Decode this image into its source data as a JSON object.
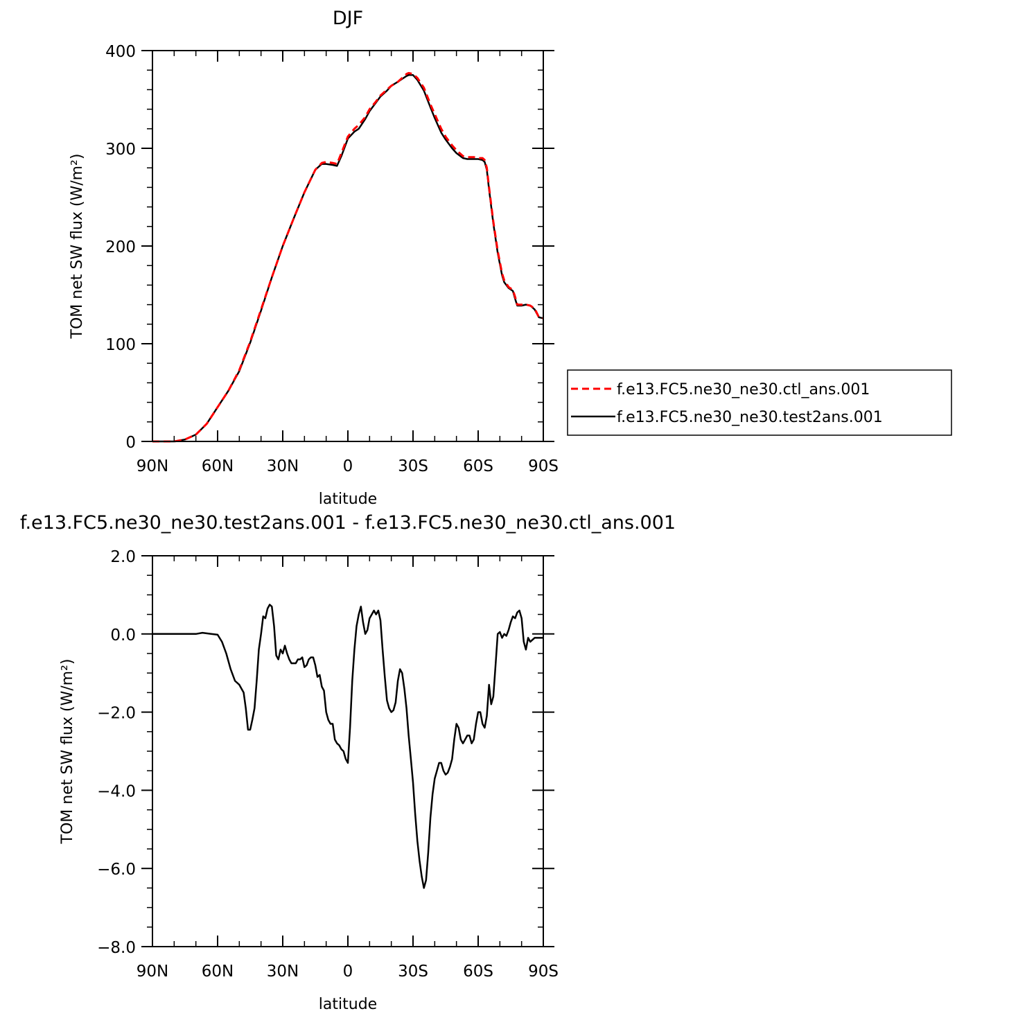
{
  "chart_data": [
    {
      "type": "line",
      "title": "DJF",
      "xlabel": "latitude",
      "ylabel": "TOM net SW flux (W/m²)",
      "xlim": [
        -90,
        90
      ],
      "ylim": [
        0,
        400
      ],
      "x_ticks": [
        -90,
        -60,
        -30,
        0,
        30,
        60,
        90
      ],
      "x_tick_labels": [
        "90N",
        "60N",
        "30N",
        "0",
        "30S",
        "60S",
        "90S"
      ],
      "y_ticks": [
        0,
        100,
        200,
        300,
        400
      ],
      "y_tick_labels": [
        "0",
        "100",
        "200",
        "300",
        "400"
      ],
      "legend_position": "right",
      "series": [
        {
          "name": "f.e13.FC5.ne30_ne30.ctl_ans.001",
          "style": "dashed",
          "color": "#ff0000",
          "x": [
            -90,
            -80,
            -75,
            -70,
            -65,
            -60,
            -55,
            -50,
            -45,
            -40,
            -35,
            -30,
            -25,
            -20,
            -15,
            -12,
            -10,
            -7,
            -5,
            -3,
            0,
            3,
            5,
            8,
            10,
            13,
            15,
            18,
            20,
            23,
            25,
            27,
            28,
            30,
            32,
            35,
            38,
            40,
            43,
            45,
            48,
            50,
            53,
            55,
            58,
            60,
            62,
            63,
            64,
            65,
            67,
            69,
            71,
            72,
            74,
            76,
            77,
            78,
            80,
            82,
            84,
            86,
            88,
            90
          ],
          "y": [
            0,
            0,
            2,
            7,
            18,
            35,
            52,
            73,
            102,
            135,
            168,
            200,
            228,
            255,
            278,
            285,
            286,
            285,
            284,
            295,
            312,
            320,
            324,
            332,
            340,
            348,
            354,
            360,
            364,
            368,
            372,
            376,
            377,
            376,
            372,
            362,
            345,
            335,
            320,
            312,
            303,
            298,
            292,
            291,
            291,
            290,
            290,
            288,
            280,
            260,
            225,
            195,
            172,
            165,
            158,
            155,
            148,
            140,
            140,
            140,
            139,
            136,
            127,
            126
          ]
        },
        {
          "name": "f.e13.FC5.ne30_ne30.test2ans.001",
          "style": "solid",
          "color": "#000000",
          "x": [
            -90,
            -80,
            -75,
            -70,
            -65,
            -60,
            -55,
            -50,
            -45,
            -40,
            -35,
            -30,
            -25,
            -20,
            -15,
            -12,
            -10,
            -7,
            -5,
            -3,
            0,
            3,
            5,
            8,
            10,
            13,
            15,
            18,
            20,
            23,
            25,
            27,
            28,
            30,
            32,
            35,
            38,
            40,
            43,
            45,
            48,
            50,
            53,
            55,
            58,
            60,
            62,
            63,
            64,
            65,
            67,
            69,
            71,
            72,
            74,
            76,
            77,
            78,
            80,
            82,
            84,
            86,
            88,
            90
          ],
          "y": [
            0,
            0,
            2,
            7,
            18,
            35,
            52,
            72,
            101,
            134,
            168,
            200,
            228,
            255,
            278,
            284,
            284,
            283,
            282,
            292,
            310,
            317,
            320,
            330,
            338,
            347,
            353,
            359,
            364,
            368,
            371,
            374,
            375,
            375,
            370,
            359,
            342,
            331,
            316,
            309,
            300,
            295,
            290,
            289,
            289,
            289,
            288,
            286,
            278,
            258,
            223,
            193,
            170,
            163,
            157,
            154,
            146,
            139,
            139,
            140,
            139,
            135,
            127,
            126
          ]
        }
      ]
    },
    {
      "type": "line",
      "title": "f.e13.FC5.ne30_ne30.test2ans.001 - f.e13.FC5.ne30_ne30.ctl_ans.001",
      "xlabel": "latitude",
      "ylabel": "TOM net SW flux (W/m²)",
      "xlim": [
        -90,
        90
      ],
      "ylim": [
        -8,
        2
      ],
      "x_ticks": [
        -90,
        -60,
        -30,
        0,
        30,
        60,
        90
      ],
      "x_tick_labels": [
        "90N",
        "60N",
        "30N",
        "0",
        "30S",
        "60S",
        "90S"
      ],
      "y_ticks": [
        -8,
        -6,
        -4,
        -2,
        0,
        2
      ],
      "y_tick_labels": [
        "-8.0",
        "-6.0",
        "-4.0",
        "-2.0",
        "0.0",
        "2.0"
      ],
      "series": [
        {
          "style": "solid",
          "color": "#000000",
          "x": [
            -90,
            -80,
            -70,
            -67,
            -63,
            -60,
            -58,
            -56,
            -54,
            -52,
            -50,
            -48,
            -47,
            -46,
            -45,
            -44,
            -43,
            -42,
            -41,
            -40,
            -39,
            -38,
            -37,
            -36,
            -35,
            -34,
            -33,
            -32,
            -31,
            -30,
            -29,
            -28,
            -27,
            -26,
            -25,
            -24,
            -23,
            -22,
            -21,
            -20,
            -19,
            -18,
            -17,
            -16,
            -15,
            -14,
            -13,
            -12,
            -11,
            -10,
            -9,
            -8,
            -7,
            -6,
            -5,
            -4,
            -3,
            -2,
            -1,
            0,
            1,
            2,
            3,
            4,
            5,
            6,
            7,
            8,
            9,
            10,
            11,
            12,
            13,
            14,
            15,
            16,
            17,
            18,
            19,
            20,
            21,
            22,
            23,
            24,
            25,
            26,
            27,
            28,
            29,
            30,
            31,
            32,
            33,
            34,
            35,
            36,
            37,
            38,
            39,
            40,
            41,
            42,
            43,
            44,
            45,
            46,
            47,
            48,
            49,
            50,
            51,
            52,
            53,
            54,
            55,
            56,
            57,
            58,
            59,
            60,
            61,
            62,
            63,
            64,
            65,
            66,
            67,
            68,
            69,
            70,
            71,
            72,
            73,
            74,
            75,
            76,
            77,
            78,
            79,
            80,
            81,
            82,
            83,
            84,
            85,
            86,
            87,
            88,
            89,
            90
          ],
          "y": [
            0,
            0,
            0,
            0.03,
            0.0,
            -0.02,
            -0.2,
            -0.5,
            -0.9,
            -1.2,
            -1.3,
            -1.5,
            -1.9,
            -2.45,
            -2.45,
            -2.2,
            -1.9,
            -1.2,
            -0.4,
            0.0,
            0.45,
            0.4,
            0.65,
            0.75,
            0.7,
            0.2,
            -0.55,
            -0.65,
            -0.4,
            -0.5,
            -0.3,
            -0.5,
            -0.65,
            -0.75,
            -0.75,
            -0.75,
            -0.65,
            -0.65,
            -0.6,
            -0.85,
            -0.8,
            -0.65,
            -0.6,
            -0.6,
            -0.8,
            -1.1,
            -1.05,
            -1.35,
            -1.45,
            -2.0,
            -2.2,
            -2.3,
            -2.3,
            -2.7,
            -2.8,
            -2.85,
            -2.95,
            -3.0,
            -3.2,
            -3.3,
            -2.4,
            -1.2,
            -0.4,
            0.2,
            0.5,
            0.7,
            0.3,
            0.0,
            0.1,
            0.4,
            0.5,
            0.6,
            0.5,
            0.6,
            0.35,
            -0.4,
            -1.1,
            -1.7,
            -1.9,
            -2.0,
            -1.95,
            -1.75,
            -1.2,
            -0.9,
            -1.0,
            -1.4,
            -1.9,
            -2.6,
            -3.2,
            -3.8,
            -4.6,
            -5.3,
            -5.8,
            -6.2,
            -6.5,
            -6.3,
            -5.6,
            -4.7,
            -4.1,
            -3.7,
            -3.5,
            -3.3,
            -3.3,
            -3.5,
            -3.6,
            -3.55,
            -3.4,
            -3.2,
            -2.7,
            -2.3,
            -2.4,
            -2.7,
            -2.8,
            -2.7,
            -2.6,
            -2.6,
            -2.8,
            -2.7,
            -2.3,
            -2.0,
            -2.0,
            -2.3,
            -2.4,
            -2.1,
            -1.3,
            -1.8,
            -1.6,
            -0.8,
            0.0,
            0.05,
            -0.1,
            0.0,
            -0.05,
            0.1,
            0.3,
            0.45,
            0.4,
            0.55,
            0.6,
            0.4,
            -0.2,
            -0.4,
            -0.1,
            -0.2,
            -0.15,
            -0.1,
            -0.1,
            -0.1,
            -0.1,
            -0.1
          ]
        }
      ]
    }
  ]
}
